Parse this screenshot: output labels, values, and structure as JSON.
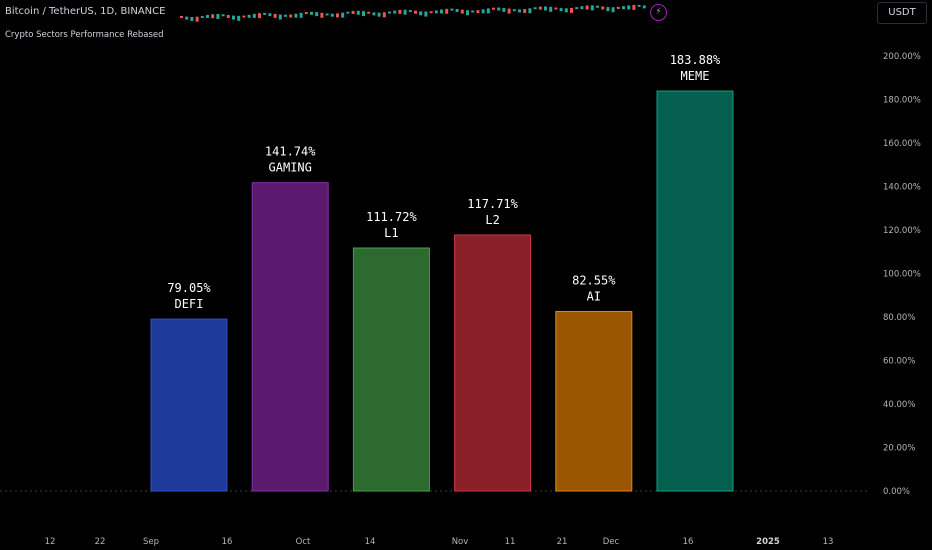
{
  "header": {
    "symbol": "Bitcoin / TetherUS, 1D, BINANCE",
    "currency": "USDT",
    "indicator_title": "Crypto Sectors Performance Rebased"
  },
  "icons": {
    "alert": "lightning-bolt-icon"
  },
  "colors": {
    "background": "#000000",
    "label": "#ffffff",
    "axis_text": "#b2b5be"
  },
  "chart_data": {
    "type": "bar",
    "title": "Crypto Sectors Performance Rebased",
    "categories": [
      "DEFI",
      "GAMING",
      "L1",
      "L2",
      "AI",
      "MEME"
    ],
    "values": [
      79.05,
      141.74,
      111.72,
      117.71,
      82.55,
      183.88
    ],
    "labels": [
      "79.05%",
      "141.74%",
      "111.72%",
      "117.71%",
      "82.55%",
      "183.88%"
    ],
    "colors": [
      "#1e3a9a",
      "#5b1a6e",
      "#2d6a30",
      "#8b1f27",
      "#9a5600",
      "#045f4e"
    ],
    "edge_colors": [
      "#3350c8",
      "#8a2fa5",
      "#47a04b",
      "#c83a45",
      "#e08a00",
      "#13a181"
    ],
    "ylim": [
      0,
      200
    ],
    "yticks": [
      "0.00%",
      "20.00%",
      "40.00%",
      "60.00%",
      "80.00%",
      "100.00%",
      "120.00%",
      "140.00%",
      "160.00%",
      "180.00%",
      "200.00%"
    ],
    "xticks": [
      "12",
      "22",
      "Sep",
      "16",
      "Oct",
      "14",
      "Nov",
      "11",
      "21",
      "Dec",
      "16",
      "2025",
      "13"
    ],
    "grid": false,
    "legend": "none"
  }
}
